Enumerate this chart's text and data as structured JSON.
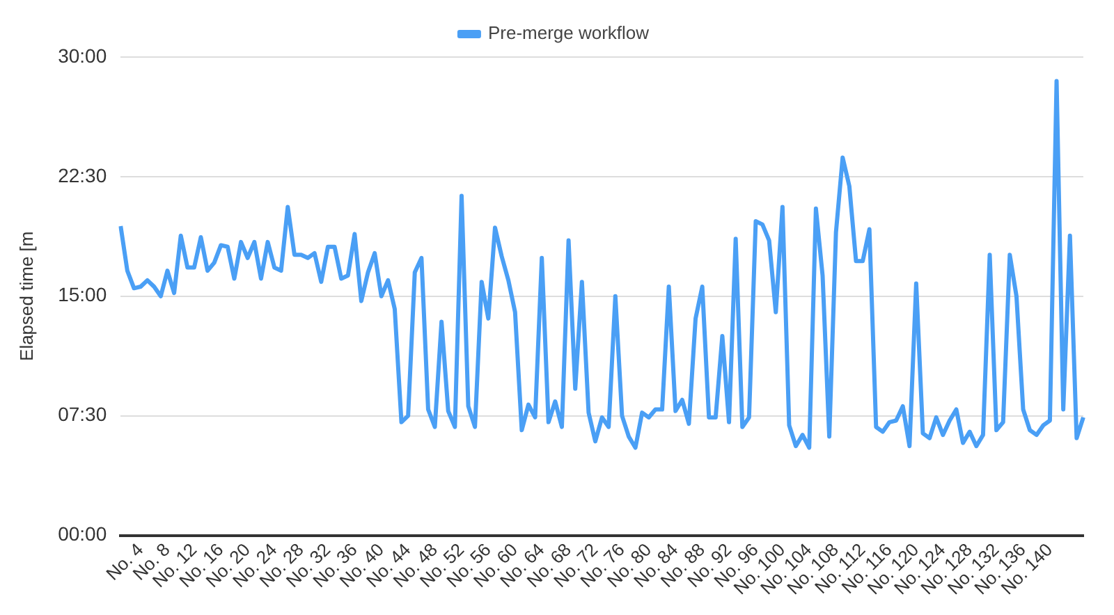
{
  "chart_data": {
    "type": "line",
    "ylabel": "Elapsed time [m",
    "categories": [
      null,
      null,
      null,
      "No. 4",
      null,
      null,
      null,
      "No. 8",
      null,
      null,
      null,
      "No. 12",
      null,
      null,
      null,
      "No. 16",
      null,
      null,
      null,
      "No. 20",
      null,
      null,
      null,
      "No. 24",
      null,
      null,
      null,
      "No. 28",
      null,
      null,
      null,
      "No. 32",
      null,
      null,
      null,
      "No. 36",
      null,
      null,
      null,
      "No. 40",
      null,
      null,
      null,
      "No. 44",
      null,
      null,
      null,
      "No. 48",
      null,
      null,
      null,
      "No. 52",
      null,
      null,
      null,
      "No. 56",
      null,
      null,
      null,
      "No. 60",
      null,
      null,
      null,
      "No. 64",
      null,
      null,
      null,
      "No. 68",
      null,
      null,
      null,
      "No. 72",
      null,
      null,
      null,
      "No. 76",
      null,
      null,
      null,
      "No. 80",
      null,
      null,
      null,
      "No. 84",
      null,
      null,
      null,
      "No. 88",
      null,
      null,
      null,
      "No. 92",
      null,
      null,
      null,
      "No. 96",
      null,
      null,
      null,
      "No. 100",
      null,
      null,
      null,
      "No. 104",
      null,
      null,
      null,
      "No. 108",
      null,
      null,
      null,
      "No. 112",
      null,
      null,
      null,
      "No. 116",
      null,
      null,
      null,
      "No. 120",
      null,
      null,
      null,
      "No. 124",
      null,
      null,
      null,
      "No. 128",
      null,
      null,
      null,
      "No. 132",
      null,
      null,
      null,
      "No. 136",
      null,
      null,
      null,
      "No. 140",
      null,
      null,
      null,
      null,
      null
    ],
    "series": [
      {
        "name": "Pre-merge workflow",
        "color": "#4a9ff5",
        "values": [
          19.4,
          16.6,
          15.5,
          15.6,
          16.0,
          15.6,
          15.0,
          16.6,
          15.2,
          18.8,
          16.8,
          16.8,
          18.7,
          16.6,
          17.1,
          18.2,
          18.1,
          16.1,
          18.4,
          17.4,
          18.4,
          16.1,
          18.4,
          16.8,
          16.6,
          20.6,
          17.6,
          17.6,
          17.4,
          17.7,
          15.9,
          18.1,
          18.1,
          16.1,
          16.3,
          18.9,
          14.7,
          16.5,
          17.7,
          15.0,
          16.0,
          14.2,
          7.1,
          7.5,
          16.5,
          17.4,
          7.9,
          6.8,
          13.4,
          7.8,
          6.8,
          21.3,
          8.1,
          6.8,
          15.9,
          13.6,
          19.3,
          17.5,
          16.0,
          14.0,
          6.6,
          8.2,
          7.4,
          17.4,
          7.1,
          8.4,
          6.8,
          18.5,
          9.2,
          15.9,
          7.7,
          5.9,
          7.4,
          6.8,
          15.0,
          7.5,
          6.2,
          5.5,
          7.7,
          7.4,
          7.9,
          7.9,
          15.6,
          7.8,
          8.5,
          7.0,
          13.6,
          15.6,
          7.4,
          7.4,
          12.5,
          7.1,
          18.6,
          6.8,
          7.4,
          19.7,
          19.5,
          18.5,
          14.0,
          20.6,
          6.9,
          5.6,
          6.3,
          5.5,
          20.5,
          16.3,
          6.2,
          19.0,
          23.7,
          21.9,
          17.2,
          17.2,
          19.2,
          6.8,
          6.5,
          7.1,
          7.2,
          8.1,
          5.6,
          15.8,
          6.4,
          6.1,
          7.4,
          6.3,
          7.2,
          7.9,
          5.8,
          6.5,
          5.6,
          6.3,
          17.6,
          6.6,
          7.1,
          17.6,
          15.0,
          7.9,
          6.6,
          6.3,
          6.9,
          7.2,
          28.5,
          7.9,
          18.8,
          6.1,
          7.4
        ]
      }
    ],
    "ylim": [
      0,
      30
    ],
    "yticks": [
      {
        "value": 0,
        "label": "00:00"
      },
      {
        "value": 7.5,
        "label": "07:30"
      },
      {
        "value": 15,
        "label": "15:00"
      },
      {
        "value": 22.5,
        "label": "22:30"
      },
      {
        "value": 30,
        "label": "30:00"
      }
    ],
    "grid": "y",
    "legend": "top",
    "marker": "none",
    "line_style": "solid"
  }
}
